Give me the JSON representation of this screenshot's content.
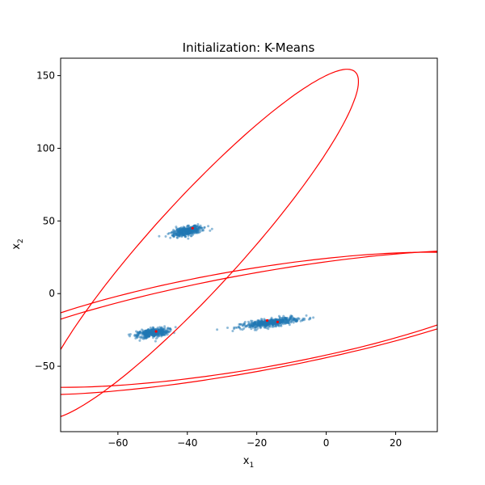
{
  "chart_data": {
    "type": "scatter",
    "title": "Initialization: K-Means",
    "xlabel": {
      "base": "x",
      "sub": "1"
    },
    "ylabel": {
      "base": "x",
      "sub": "2"
    },
    "xlim": [
      -76.5,
      32
    ],
    "ylim": [
      -95,
      162
    ],
    "xticks": [
      -60,
      -40,
      -20,
      0,
      20
    ],
    "yticks": [
      -50,
      0,
      50,
      100,
      150
    ],
    "xtick_labels": [
      "−60",
      "−40",
      "−20",
      "0",
      "20"
    ],
    "ytick_labels": [
      "−50",
      "0",
      "50",
      "100",
      "150"
    ],
    "grid": false,
    "colors": {
      "points": "#1f77b4",
      "centers": "#ff0000",
      "ellipses": "#ff0000"
    },
    "clusters": [
      {
        "center": [
          -40,
          43
        ],
        "spread": [
          2.5,
          1.3
        ],
        "angle_deg": 33,
        "n": 420
      },
      {
        "center": [
          -50,
          -27
        ],
        "spread": [
          2.4,
          1.4
        ],
        "angle_deg": 22,
        "n": 420
      },
      {
        "center": [
          -16,
          -20
        ],
        "spread": [
          4.3,
          1.2
        ],
        "angle_deg": 18,
        "n": 520
      }
    ],
    "cluster_centers": [
      [
        -38.5,
        45
      ],
      [
        -49,
        -26
      ],
      [
        -17,
        -18.5
      ],
      [
        -14,
        -19.5
      ]
    ],
    "ellipses": [
      {
        "center": [
          -37,
          34
        ],
        "rx": 16,
        "ry": 128,
        "angle_deg": -20
      },
      {
        "center": [
          -23,
          -18
        ],
        "rx": 32,
        "ry": 86,
        "angle_deg": -65
      },
      {
        "center": [
          -21,
          -20
        ],
        "rx": 31,
        "ry": 94,
        "angle_deg": -64
      }
    ]
  }
}
